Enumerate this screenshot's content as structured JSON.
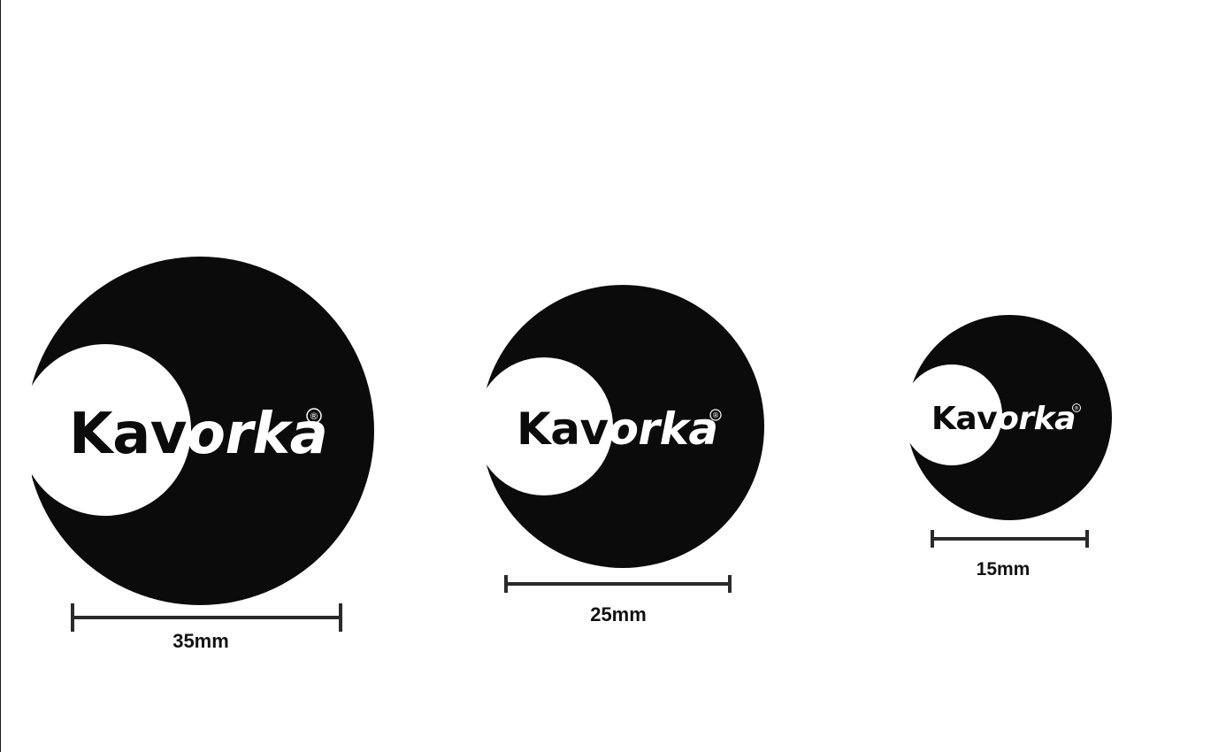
{
  "brand": {
    "word_part_1": "Kav",
    "word_part_2": "orka",
    "registered_mark": "®"
  },
  "colors": {
    "background": "#ffffff",
    "mark_black": "#0b0b0b",
    "mark_white": "#ffffff",
    "scale_bar": "#2a2a2a"
  },
  "sizes": [
    {
      "label": "35mm",
      "diameter_mm": 35
    },
    {
      "label": "25mm",
      "diameter_mm": 25
    },
    {
      "label": "15mm",
      "diameter_mm": 15
    }
  ]
}
